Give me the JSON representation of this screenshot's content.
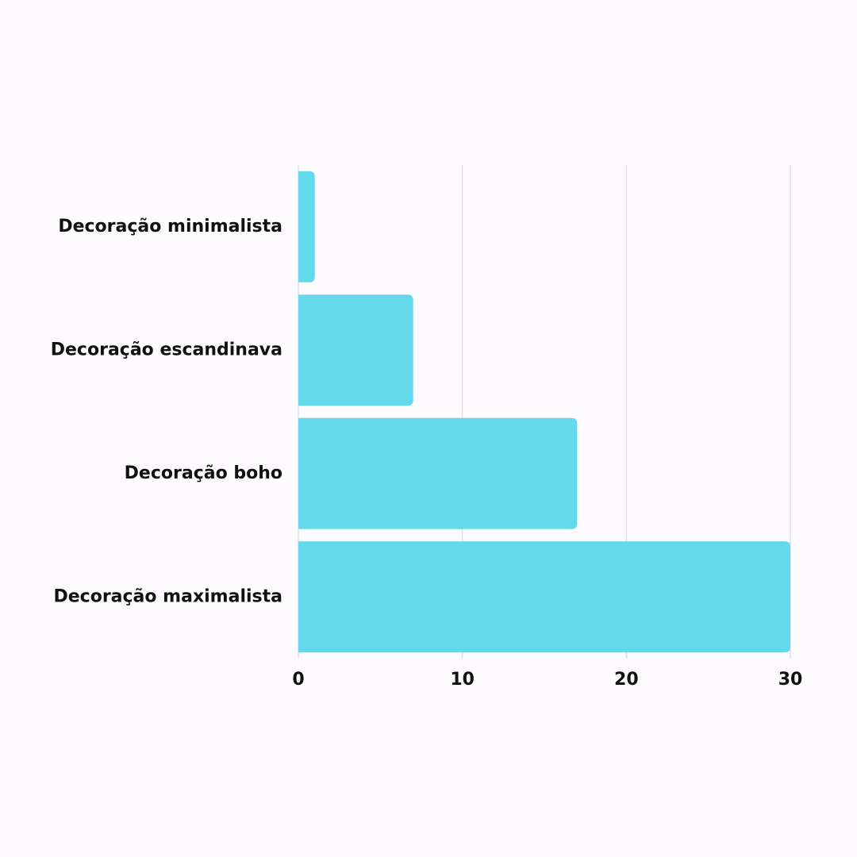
{
  "chart_data": {
    "type": "hbar",
    "categories": [
      "Decoração minimalista",
      "Decoração escandinava",
      "Decoração boho",
      "Decoração maximalista"
    ],
    "values": [
      1,
      7,
      17,
      30
    ],
    "color": "#64d9ec",
    "xlim": [
      0,
      30
    ],
    "xticks": [
      0,
      10,
      20,
      30
    ],
    "grid": true
  }
}
